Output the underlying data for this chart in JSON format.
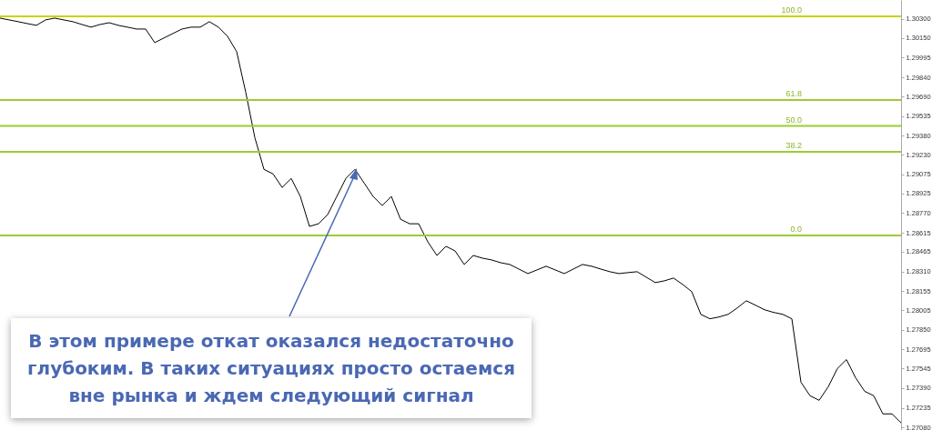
{
  "chart_data": {
    "type": "line",
    "categories": [
      null,
      null,
      null,
      null,
      null,
      null,
      null,
      null,
      null,
      null,
      null,
      null,
      null,
      null,
      null,
      null,
      null,
      null,
      null,
      null,
      null,
      null,
      null,
      null,
      null,
      null,
      null,
      null,
      null,
      null,
      null,
      null,
      null,
      null,
      null,
      null,
      null,
      null,
      null,
      null,
      null,
      null,
      null,
      null,
      null,
      null,
      null,
      null,
      null,
      null,
      null,
      null,
      null,
      null,
      null,
      null,
      null,
      null,
      null,
      null,
      null,
      null,
      null,
      null,
      null,
      null,
      null,
      null,
      null,
      null,
      null,
      null,
      null,
      null,
      null,
      null,
      null,
      null,
      null,
      null,
      null,
      null,
      null,
      null,
      null,
      null,
      null,
      null,
      null,
      null,
      null,
      null,
      null,
      null,
      null,
      null,
      null,
      null,
      null,
      null
    ],
    "series": [
      {
        "color": "#000000",
        "values": [
          1.30307,
          1.30293,
          1.30279,
          1.30264,
          1.3025,
          1.30293,
          1.30307,
          1.30293,
          1.30279,
          1.30257,
          1.30236,
          1.30257,
          1.30271,
          1.3025,
          1.30236,
          1.30221,
          1.30221,
          1.30114,
          1.3015,
          1.30186,
          1.30221,
          1.30236,
          1.30236,
          1.30279,
          1.30236,
          1.30164,
          1.30043,
          1.29722,
          1.29365,
          1.29115,
          1.29079,
          1.28972,
          1.29043,
          1.28901,
          1.28665,
          1.28686,
          1.28758,
          1.28901,
          1.29043,
          1.29115,
          1.29008,
          1.28901,
          1.28829,
          1.28901,
          1.28722,
          1.28686,
          1.28686,
          1.28544,
          1.28436,
          1.28508,
          1.28472,
          1.28365,
          1.28436,
          1.28415,
          1.28401,
          1.28379,
          1.28365,
          1.28329,
          1.28293,
          1.28322,
          1.28351,
          1.28322,
          1.28293,
          1.28329,
          1.28365,
          1.28351,
          1.28329,
          1.28308,
          1.28293,
          1.28301,
          1.28308,
          1.28265,
          1.28222,
          1.28236,
          1.28258,
          1.28208,
          1.28151,
          1.27972,
          1.27937,
          1.27951,
          1.27972,
          1.28022,
          1.28079,
          1.28044,
          1.28008,
          1.27987,
          1.27972,
          1.27937,
          1.27437,
          1.2733,
          1.27294,
          1.27401,
          1.27544,
          1.27615,
          1.27473,
          1.27365,
          1.2733,
          1.27187,
          1.27187,
          1.27116
        ]
      }
    ],
    "ylim": [
      1.2706,
      1.3045
    ],
    "yticks": [
      {
        "value": 1.303,
        "label": "1.30300"
      },
      {
        "value": 1.3015,
        "label": "1.30150"
      },
      1.29995,
      {
        "value": 1.2984,
        "label": "1.29840"
      },
      {
        "value": 1.2969,
        "label": "1.29690"
      },
      1.29535,
      {
        "value": 1.2938,
        "label": "1.29380"
      },
      {
        "value": 1.2923,
        "label": "1.29230"
      },
      1.29075,
      1.28925,
      {
        "value": 1.2877,
        "label": "1.28770"
      },
      1.28615,
      1.28465,
      {
        "value": 1.2831,
        "label": "1.28310"
      },
      1.28155,
      1.28005,
      {
        "value": 1.2785,
        "label": "1.27850"
      },
      1.27695,
      1.27545,
      {
        "value": 1.2739,
        "label": "1.27390"
      },
      1.27235,
      {
        "value": 1.2708,
        "label": "1.27080"
      }
    ],
    "ref_lines": [
      {
        "axis": "y",
        "value": 1.30321,
        "color": "#c8d400"
      },
      {
        "axis": "y",
        "value": 1.29661,
        "color": "#9acd32"
      },
      {
        "axis": "y",
        "value": 1.29457,
        "color": "#9acd32"
      },
      {
        "axis": "y",
        "value": 1.29254,
        "color": "#9acd32"
      },
      {
        "axis": "y",
        "value": 1.28594,
        "color": "#9acd32"
      }
    ],
    "annotations": [
      "В этом примере откат оказался недостаточно глубоким. В таких ситуациях просто остаемся вне рынка и ждем следующий сигнал",
      {
        "text": "100.0",
        "y": 1.30321
      },
      {
        "text": "61.8",
        "y": 1.29661
      },
      {
        "text": "50.0",
        "y": 1.29457
      },
      {
        "text": "38.2",
        "y": 1.29254
      },
      {
        "text": "0.0",
        "y": 1.28594
      }
    ]
  }
}
